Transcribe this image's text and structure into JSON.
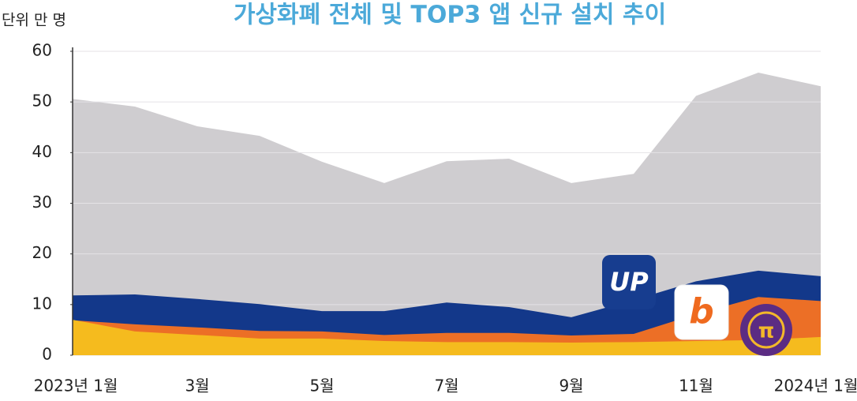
{
  "chart_data": {
    "type": "area",
    "title": "가상화폐 전체 및 TOP3  앱 신규 설치 추이",
    "y_label": "단위 만 명",
    "categories": [
      "2023년 1월",
      null,
      "3월",
      null,
      "5월",
      null,
      "7월",
      null,
      "9월",
      null,
      "11월",
      null,
      "2024년 1월"
    ],
    "series": [
      {
        "color": "#cfcdd0",
        "values": [
          50.6,
          49.1,
          45.2,
          43.3,
          38.2,
          34.0,
          38.3,
          38.8,
          34.0,
          35.8,
          51.2,
          55.8,
          53.1
        ]
      },
      {
        "color": "#13388a",
        "values": [
          11.8,
          12.0,
          11.1,
          10.1,
          8.7,
          8.7,
          10.4,
          9.5,
          7.5,
          10.9,
          14.6,
          16.7,
          15.6
        ]
      },
      {
        "color": "#ec6f26",
        "values": [
          6.9,
          6.1,
          5.5,
          4.8,
          4.7,
          4.0,
          4.4,
          4.4,
          3.9,
          4.2,
          8.1,
          11.5,
          10.7
        ]
      },
      {
        "color": "#f5bb1e",
        "values": [
          7.0,
          4.7,
          4.0,
          3.3,
          3.3,
          2.8,
          2.6,
          2.6,
          2.5,
          2.6,
          2.8,
          3.0,
          3.6
        ]
      }
    ],
    "annotations": [
      "UP",
      "b",
      "π"
    ],
    "ylim": [
      0,
      60
    ],
    "yticks": [
      0,
      10,
      20,
      30,
      40,
      50,
      60
    ],
    "grid": true
  }
}
